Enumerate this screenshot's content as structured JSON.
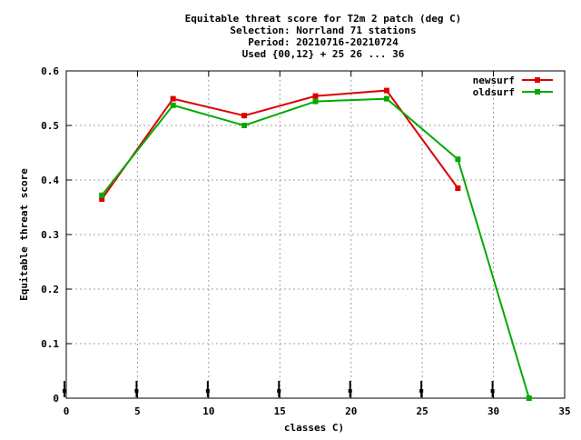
{
  "chart_data": {
    "type": "line",
    "title_lines": [
      "Equitable threat score  for T2m 2 patch (deg C)",
      "Selection: Norrland     71 stations",
      "Period: 20210716-20210724",
      "Used {00,12} + 25 26 ... 36"
    ],
    "xlabel": "classes C)",
    "ylabel": "Equitable threat score",
    "xlim": [
      0,
      35
    ],
    "ylim": [
      0,
      0.6
    ],
    "xticks": [
      0,
      5,
      10,
      15,
      20,
      25,
      30,
      35
    ],
    "yticks": [
      0,
      0.1,
      0.2,
      0.3,
      0.4,
      0.5,
      0.6
    ],
    "xtick_labels": [
      "0",
      "5",
      "10",
      "15",
      "20",
      "25",
      "30",
      "35"
    ],
    "ytick_labels": [
      "0",
      "0.1",
      "0.2",
      "0.3",
      "0.4",
      "0.5",
      "0.6"
    ],
    "grid": true,
    "legend_position": "top-right",
    "series": [
      {
        "name": "newsurf",
        "color": "#dd0000",
        "x": [
          2.5,
          7.5,
          12.5,
          17.5,
          22.5,
          27.5
        ],
        "y": [
          0.365,
          0.549,
          0.518,
          0.554,
          0.564,
          0.385
        ]
      },
      {
        "name": "oldsurf",
        "color": "#00aa00",
        "x": [
          2.5,
          7.5,
          12.5,
          17.5,
          22.5,
          27.5,
          32.5
        ],
        "y": [
          0.372,
          0.537,
          0.5,
          0.544,
          0.549,
          0.438,
          0.0
        ]
      }
    ],
    "sample_markers": {
      "x": [
        0,
        5,
        10,
        15,
        20,
        25,
        30
      ],
      "y": 0
    }
  }
}
